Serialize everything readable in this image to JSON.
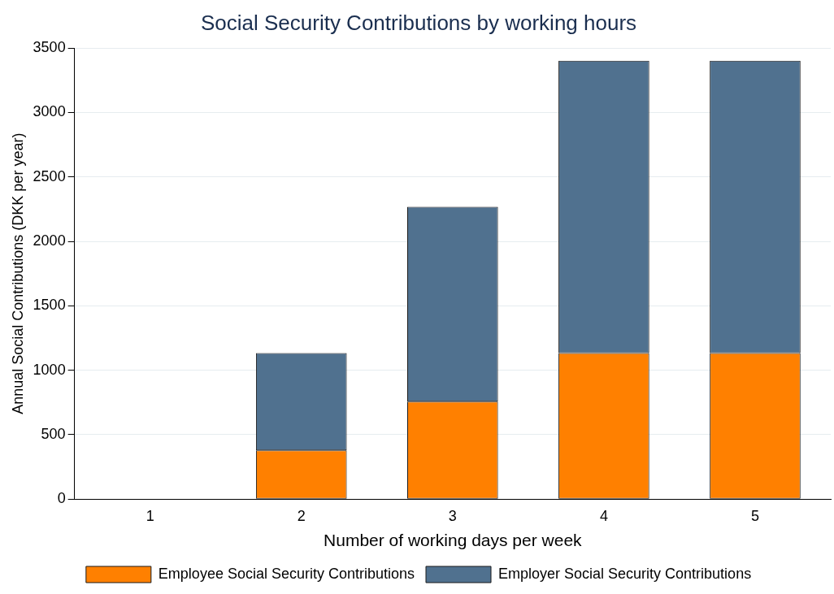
{
  "chart_data": {
    "type": "bar",
    "title": "Social Security Contributions by working hours",
    "xlabel": "Number of working days per week",
    "ylabel": "Annual Social Contributions (DKK per year)",
    "categories": [
      "1",
      "2",
      "3",
      "4",
      "5"
    ],
    "stacked": true,
    "series": [
      {
        "name": "Employee Social Security Contributions",
        "color": "#ff8000",
        "values": [
          0,
          378,
          756,
          1134,
          1134
        ]
      },
      {
        "name": "Employer Social Security Contributions",
        "color": "#50718f",
        "values": [
          0,
          756,
          1512,
          2268,
          2268
        ]
      }
    ],
    "ylim": [
      0,
      3500
    ],
    "yticks": [
      0,
      500,
      1000,
      1500,
      2000,
      2500,
      3000,
      3500
    ],
    "grid": "y",
    "legend": "bottom"
  }
}
